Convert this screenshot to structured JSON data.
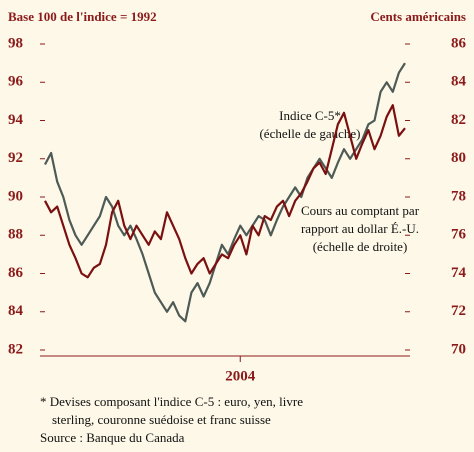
{
  "chart_data": {
    "type": "line",
    "ylabel": "Base 100 de l'indice = 1992",
    "y2label": "Cents américains",
    "x": [
      0,
      1,
      2,
      3,
      4,
      5,
      6,
      7,
      8,
      9,
      10,
      11,
      12,
      13,
      14,
      15,
      16,
      17,
      18,
      19,
      20,
      21,
      22,
      23,
      24,
      25,
      26,
      27,
      28,
      29,
      30,
      31,
      32,
      33,
      34,
      35,
      36,
      37,
      38,
      39,
      40,
      41,
      42,
      43,
      44,
      45,
      46,
      47,
      48,
      49,
      50,
      51,
      52,
      53,
      54,
      55,
      56,
      57,
      58,
      59
    ],
    "xlim": [
      0,
      59
    ],
    "xticks": [
      {
        "value": 32,
        "label": "2004"
      }
    ],
    "ylim": [
      82,
      98
    ],
    "yticks": [
      82,
      84,
      86,
      88,
      90,
      92,
      94,
      96,
      98
    ],
    "y2lim": [
      70,
      86
    ],
    "y2ticks": [
      70,
      72,
      74,
      76,
      78,
      80,
      82,
      84,
      86
    ],
    "series": [
      {
        "name": "Indice C-5*",
        "color": "#7a1010",
        "axis": "y",
        "values": [
          89.8,
          89.2,
          89.5,
          88.5,
          87.5,
          86.8,
          86.0,
          85.8,
          86.3,
          86.5,
          87.5,
          89.2,
          89.8,
          88.5,
          87.8,
          88.5,
          88.0,
          87.5,
          88.2,
          87.8,
          89.2,
          88.5,
          87.8,
          86.8,
          86.0,
          86.5,
          86.8,
          86.0,
          86.5,
          87.0,
          86.8,
          87.5,
          88.0,
          87.0,
          88.5,
          88.0,
          89.0,
          88.8,
          89.5,
          89.8,
          89.0,
          89.8,
          90.2,
          90.8,
          91.5,
          91.8,
          91.2,
          92.5,
          93.8,
          94.4,
          93.2,
          92.0,
          92.8,
          93.5,
          92.5,
          93.2,
          94.2,
          94.8,
          93.2,
          93.6
        ]
      },
      {
        "name": "Cours au comptant par rapport au dollar É.-U.",
        "color": "#4d5a56",
        "axis": "y2",
        "values": [
          79.7,
          80.3,
          78.8,
          78.0,
          76.8,
          76.0,
          75.5,
          76.0,
          76.5,
          77.0,
          78.0,
          77.5,
          76.5,
          76.0,
          76.5,
          75.8,
          75.0,
          74.0,
          73.0,
          72.5,
          72.0,
          72.5,
          71.8,
          71.5,
          73.0,
          73.5,
          72.8,
          73.5,
          74.5,
          75.5,
          75.0,
          75.8,
          76.5,
          76.0,
          76.5,
          77.0,
          76.8,
          76.0,
          76.8,
          77.5,
          78.0,
          78.5,
          78.0,
          79.0,
          79.5,
          80.0,
          79.5,
          79.0,
          79.8,
          80.5,
          80.0,
          80.5,
          81.0,
          81.8,
          82.0,
          83.5,
          84.0,
          83.5,
          84.5,
          85.0
        ]
      }
    ],
    "annotations": [
      "Indice C-5*",
      "(échelle de gauche)",
      "Cours au comptant par",
      "rapport au dollar É.-U.",
      "(échelle de droite)"
    ],
    "notes": [
      "* Devises composant l'indice C-5 : euro, yen, livre",
      "sterling, couronne suédoise et franc suisse",
      "Source : Banque du Canada"
    ]
  }
}
